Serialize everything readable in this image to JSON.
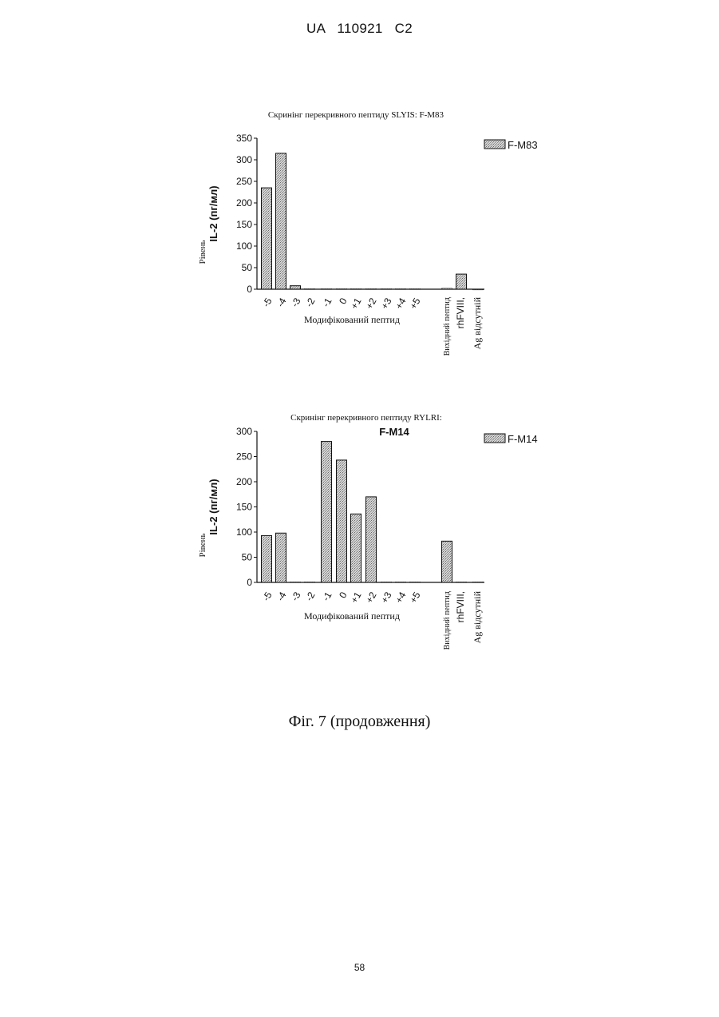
{
  "header": "UA 110921 C2",
  "caption": "Фіг. 7 (продовження)",
  "page_number": "58",
  "chart_data": [
    {
      "type": "bar",
      "title": "Скринінг перекривного пептиду SLYIS: F-M83",
      "subtitle": "",
      "ylabel_prefix": "Рівень",
      "ylabel": "IL-2 (пг/мл)",
      "xlabel": "Модифікований пептид",
      "categories": [
        "-5",
        "-4",
        "-3",
        "-2",
        "-1",
        "0",
        "+1",
        "+2",
        "+3",
        "+4",
        "+5",
        "Вихідний пептид",
        "rhFVIII,",
        "Ag відсутній"
      ],
      "series": [
        {
          "name": "F-M83",
          "values": [
            235,
            315,
            8,
            1,
            1,
            1,
            1,
            1,
            1,
            1,
            1,
            2,
            35,
            0
          ]
        }
      ],
      "ylim": [
        0,
        350
      ],
      "yticks": [
        0,
        50,
        100,
        150,
        200,
        250,
        300,
        350
      ],
      "legend_position": "top-right",
      "grid": false
    },
    {
      "type": "bar",
      "title": "Скринінг перекривного пептиду RYLRI:",
      "subtitle": "F-M14",
      "ylabel_prefix": "Рівень",
      "ylabel": "IL-2 (пг/мл)",
      "xlabel": "Модифікований пептид",
      "categories": [
        "-5",
        "-4",
        "-3",
        "-2",
        "-1",
        "0",
        "+1",
        "+2",
        "+3",
        "+4",
        "+5",
        "Вихідний пептид",
        "rhFVIII,",
        "Ag відсутній"
      ],
      "series": [
        {
          "name": "F-M14",
          "values": [
            93,
            98,
            1,
            1,
            280,
            243,
            136,
            170,
            1,
            1,
            1,
            82,
            1,
            1
          ]
        }
      ],
      "ylim": [
        0,
        300
      ],
      "yticks": [
        0,
        50,
        100,
        150,
        200,
        250,
        300
      ],
      "legend_position": "top-right",
      "grid": false
    }
  ]
}
